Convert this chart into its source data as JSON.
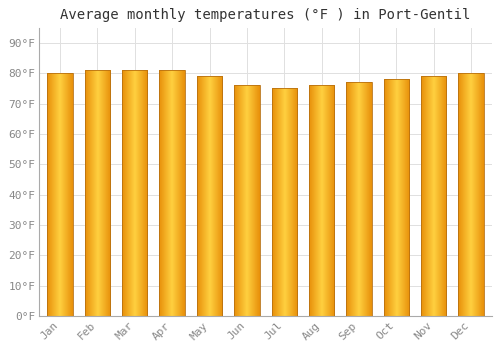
{
  "title": "Average monthly temperatures (°F ) in Port-Gentil",
  "months": [
    "Jan",
    "Feb",
    "Mar",
    "Apr",
    "May",
    "Jun",
    "Jul",
    "Aug",
    "Sep",
    "Oct",
    "Nov",
    "Dec"
  ],
  "values": [
    80,
    81,
    81,
    81,
    79,
    76,
    75,
    76,
    77,
    78,
    79,
    80
  ],
  "bar_color_left": "#E8900A",
  "bar_color_center": "#FFD040",
  "bar_color_right": "#E8900A",
  "bar_edge_color": "#B87010",
  "background_color": "#ffffff",
  "plot_bg_color": "#ffffff",
  "grid_color": "#e0e0e0",
  "ytick_labels": [
    "0°F",
    "10°F",
    "20°F",
    "30°F",
    "40°F",
    "50°F",
    "60°F",
    "70°F",
    "80°F",
    "90°F"
  ],
  "ytick_values": [
    0,
    10,
    20,
    30,
    40,
    50,
    60,
    70,
    80,
    90
  ],
  "ylim": [
    0,
    95
  ],
  "title_fontsize": 10,
  "tick_fontsize": 8,
  "font_family": "monospace",
  "bar_width": 0.68,
  "n_gradient_strips": 40
}
